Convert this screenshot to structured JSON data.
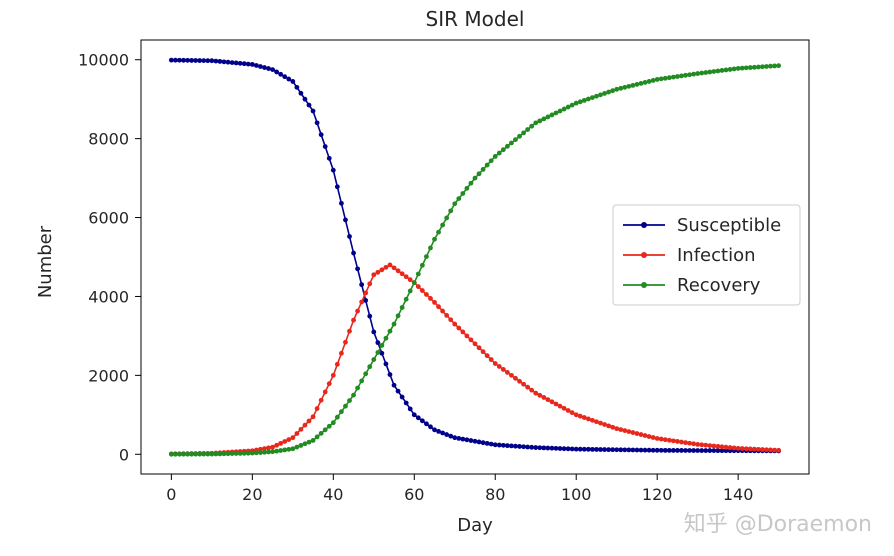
{
  "chart_data": {
    "type": "line",
    "title": "SIR Model",
    "xlabel": "Day",
    "ylabel": "Number",
    "xlim": [
      -7.5,
      157.5
    ],
    "ylim": [
      -500,
      10500
    ],
    "xticks": [
      0,
      20,
      40,
      60,
      80,
      100,
      120,
      140
    ],
    "yticks": [
      0,
      2000,
      4000,
      6000,
      8000,
      10000
    ],
    "grid": false,
    "legend_position": "center-right",
    "days": {
      "start": 0,
      "end": 150,
      "step": 1
    },
    "series": [
      {
        "name": "Susceptible",
        "color": "#00008b",
        "marker": "dot",
        "points": [
          [
            0,
            9990
          ],
          [
            10,
            9975
          ],
          [
            20,
            9880
          ],
          [
            25,
            9750
          ],
          [
            30,
            9450
          ],
          [
            35,
            8700
          ],
          [
            40,
            7200
          ],
          [
            45,
            5100
          ],
          [
            50,
            3100
          ],
          [
            55,
            1750
          ],
          [
            60,
            1000
          ],
          [
            65,
            620
          ],
          [
            70,
            420
          ],
          [
            80,
            240
          ],
          [
            90,
            170
          ],
          [
            100,
            130
          ],
          [
            120,
            100
          ],
          [
            140,
            90
          ],
          [
            150,
            85
          ]
        ]
      },
      {
        "name": "Infection",
        "color": "#e8281c",
        "marker": "dot",
        "points": [
          [
            0,
            10
          ],
          [
            10,
            25
          ],
          [
            20,
            90
          ],
          [
            25,
            180
          ],
          [
            30,
            420
          ],
          [
            35,
            950
          ],
          [
            40,
            2000
          ],
          [
            45,
            3400
          ],
          [
            50,
            4550
          ],
          [
            54,
            4800
          ],
          [
            60,
            4350
          ],
          [
            65,
            3850
          ],
          [
            70,
            3300
          ],
          [
            75,
            2800
          ],
          [
            80,
            2300
          ],
          [
            90,
            1550
          ],
          [
            100,
            1000
          ],
          [
            110,
            650
          ],
          [
            120,
            400
          ],
          [
            130,
            250
          ],
          [
            140,
            150
          ],
          [
            150,
            100
          ]
        ]
      },
      {
        "name": "Recovery",
        "color": "#228b22",
        "marker": "dot",
        "points": [
          [
            0,
            0
          ],
          [
            10,
            5
          ],
          [
            20,
            30
          ],
          [
            25,
            65
          ],
          [
            30,
            140
          ],
          [
            35,
            350
          ],
          [
            40,
            800
          ],
          [
            45,
            1500
          ],
          [
            50,
            2400
          ],
          [
            55,
            3300
          ],
          [
            60,
            4350
          ],
          [
            65,
            5450
          ],
          [
            70,
            6350
          ],
          [
            75,
            7000
          ],
          [
            80,
            7550
          ],
          [
            90,
            8400
          ],
          [
            100,
            8900
          ],
          [
            110,
            9250
          ],
          [
            120,
            9500
          ],
          [
            130,
            9650
          ],
          [
            140,
            9780
          ],
          [
            150,
            9850
          ]
        ]
      }
    ]
  },
  "watermark": "知乎 @Doraemon"
}
